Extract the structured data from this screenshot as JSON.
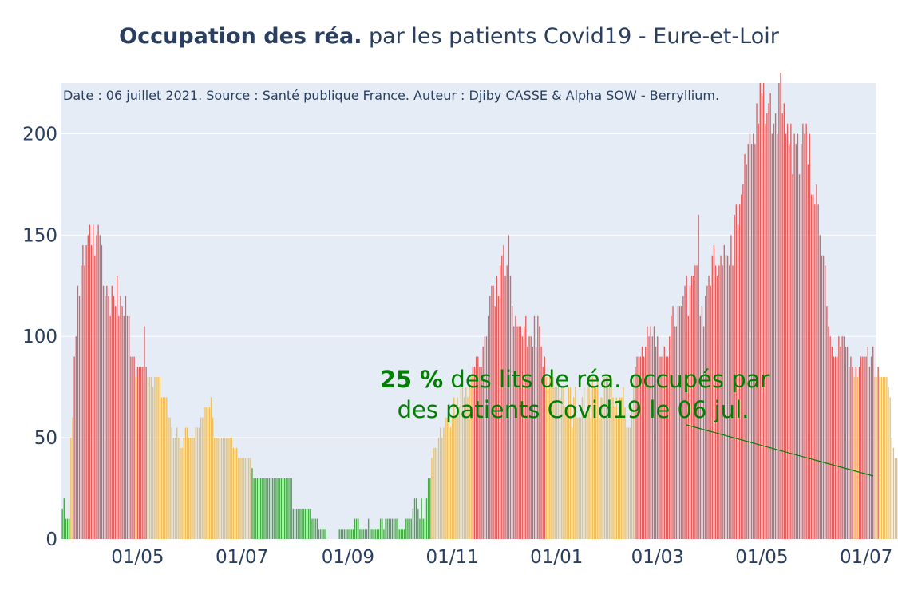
{
  "title": {
    "bold": "Occupation des réa.",
    "rest": " par les patients Covid19 - Eure-et-Loir"
  },
  "source_note": "Date : 06 juillet 2021. Source : Santé publique France. Auteur : Djiby CASSE & Alpha SOW - Berryllium.",
  "annotation": {
    "value": "25  %",
    "line1_rest": " des lits de réa. occupés par",
    "line2": "des patients Covid19 le 06 jul.",
    "color": "#008000"
  },
  "colors": {
    "red": "#e06060",
    "yellow": "#f0c060",
    "green": "#44aa44",
    "plot_bg": "#e5ecf6",
    "grid": "#ffffff",
    "text": "#2a3f5f"
  },
  "chart_data": {
    "type": "bar",
    "x_start": "2020-03-18",
    "x_end": "2021-07-06",
    "xlim": [
      "2020-03-17",
      "2021-07-07"
    ],
    "ylim": [
      0,
      225
    ],
    "yticks": [
      0,
      50,
      100,
      150,
      200
    ],
    "xticks": [
      {
        "date": "2020-05-01",
        "label": "01/05"
      },
      {
        "date": "2020-07-01",
        "label": "01/07"
      },
      {
        "date": "2020-09-01",
        "label": "01/09"
      },
      {
        "date": "2020-11-01",
        "label": "01/11"
      },
      {
        "date": "2021-01-01",
        "label": "01/01"
      },
      {
        "date": "2021-03-01",
        "label": "01/03"
      },
      {
        "date": "2021-05-01",
        "label": "01/05"
      },
      {
        "date": "2021-07-01",
        "label": "01/07"
      }
    ],
    "color_rule": "green < 40, yellow 40–80, red > 80",
    "values": [
      15,
      20,
      10,
      10,
      10,
      50,
      60,
      90,
      100,
      125,
      120,
      135,
      145,
      135,
      145,
      150,
      155,
      145,
      155,
      140,
      150,
      155,
      150,
      145,
      125,
      120,
      125,
      120,
      110,
      125,
      120,
      115,
      130,
      110,
      120,
      115,
      110,
      120,
      110,
      110,
      90,
      90,
      90,
      80,
      85,
      85,
      85,
      85,
      105,
      85,
      80,
      80,
      80,
      75,
      80,
      80,
      80,
      80,
      70,
      70,
      70,
      70,
      60,
      60,
      55,
      50,
      50,
      55,
      50,
      45,
      45,
      50,
      55,
      55,
      50,
      50,
      50,
      50,
      55,
      55,
      55,
      60,
      60,
      65,
      65,
      65,
      65,
      70,
      60,
      50,
      50,
      50,
      50,
      50,
      50,
      50,
      50,
      50,
      50,
      50,
      45,
      45,
      45,
      40,
      40,
      40,
      40,
      40,
      40,
      40,
      40,
      35,
      30,
      30,
      30,
      30,
      30,
      30,
      30,
      30,
      30,
      30,
      30,
      30,
      30,
      30,
      30,
      30,
      30,
      30,
      30,
      30,
      30,
      30,
      30,
      15,
      15,
      15,
      15,
      15,
      15,
      15,
      15,
      15,
      15,
      15,
      10,
      10,
      10,
      10,
      5,
      5,
      5,
      5,
      5,
      0,
      0,
      0,
      0,
      0,
      0,
      0,
      5,
      5,
      5,
      5,
      5,
      5,
      5,
      5,
      5,
      10,
      10,
      10,
      5,
      5,
      5,
      5,
      5,
      10,
      5,
      5,
      5,
      5,
      5,
      5,
      10,
      10,
      5,
      10,
      10,
      10,
      10,
      10,
      10,
      10,
      10,
      5,
      5,
      5,
      5,
      10,
      10,
      10,
      10,
      15,
      20,
      20,
      15,
      10,
      20,
      10,
      10,
      20,
      30,
      30,
      40,
      45,
      45,
      45,
      50,
      55,
      50,
      55,
      60,
      60,
      60,
      55,
      60,
      70,
      60,
      70,
      65,
      75,
      75,
      70,
      75,
      70,
      75,
      80,
      85,
      85,
      90,
      90,
      85,
      85,
      95,
      100,
      100,
      110,
      120,
      125,
      125,
      115,
      130,
      120,
      135,
      140,
      145,
      130,
      135,
      150,
      130,
      115,
      105,
      110,
      105,
      105,
      105,
      100,
      105,
      110,
      95,
      100,
      100,
      95,
      110,
      95,
      110,
      105,
      95,
      85,
      90,
      80,
      75,
      80,
      75,
      80,
      75,
      75,
      75,
      70,
      75,
      75,
      65,
      65,
      75,
      75,
      55,
      70,
      75,
      60,
      60,
      60,
      70,
      75,
      60,
      75,
      75,
      60,
      80,
      75,
      75,
      80,
      60,
      70,
      70,
      80,
      80,
      80,
      75,
      80,
      70,
      65,
      70,
      60,
      70,
      70,
      75,
      65,
      55,
      55,
      55,
      65,
      80,
      85,
      90,
      90,
      90,
      95,
      90,
      95,
      105,
      100,
      105,
      100,
      105,
      95,
      100,
      90,
      90,
      90,
      95,
      90,
      90,
      100,
      110,
      115,
      105,
      105,
      115,
      115,
      115,
      120,
      125,
      130,
      110,
      125,
      130,
      130,
      135,
      135,
      160,
      110,
      115,
      105,
      120,
      125,
      130,
      125,
      140,
      145,
      135,
      130,
      135,
      140,
      135,
      145,
      140,
      140,
      135,
      150,
      135,
      160,
      165,
      155,
      165,
      170,
      175,
      190,
      185,
      195,
      200,
      195,
      200,
      195,
      215,
      205,
      225,
      220,
      225,
      205,
      210,
      215,
      220,
      200,
      205,
      210,
      200,
      225,
      230,
      210,
      215,
      200,
      205,
      195,
      205,
      180,
      200,
      195,
      200,
      180,
      195,
      205,
      200,
      205,
      185,
      200,
      170,
      170,
      165,
      175,
      165,
      150,
      140,
      140,
      135,
      115,
      105,
      100,
      95,
      90,
      90,
      90,
      100,
      95,
      100,
      100,
      95,
      95,
      85,
      90,
      85,
      80,
      85,
      80,
      85,
      90,
      90,
      90,
      90,
      95,
      85,
      90,
      95,
      80,
      80,
      85,
      80,
      80,
      80,
      80,
      80,
      75,
      70,
      50,
      45,
      40,
      40,
      40,
      35,
      30,
      30,
      30,
      30,
      30,
      30,
      25
    ]
  }
}
